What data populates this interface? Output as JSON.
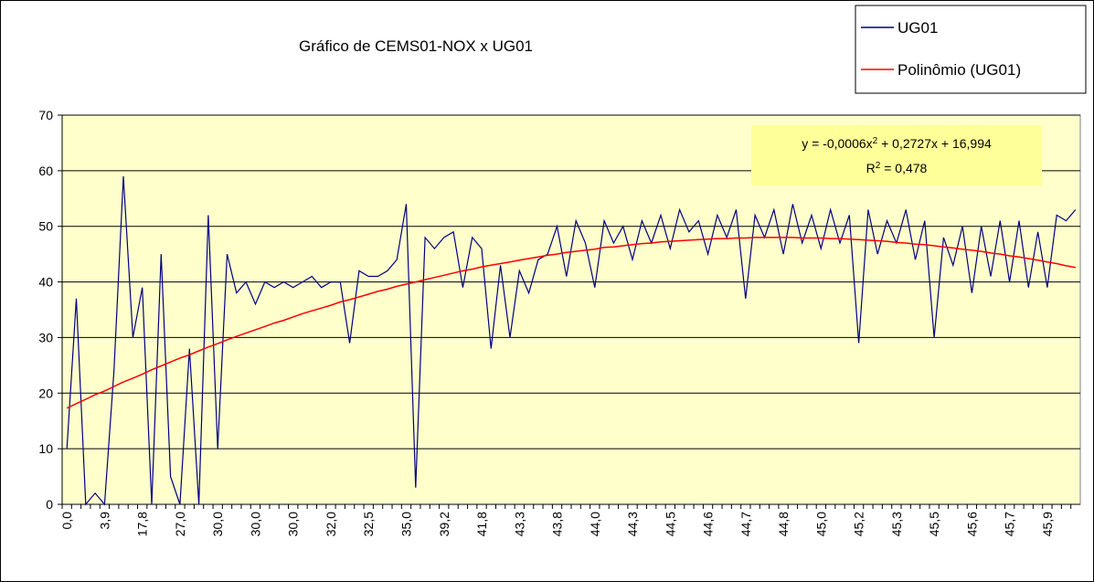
{
  "chart_data": {
    "type": "line",
    "title": "Gráfico de CEMS01-NOX x UG01",
    "categories": [
      "0,0",
      null,
      null,
      null,
      "3,9",
      null,
      null,
      null,
      "17,8",
      null,
      null,
      null,
      "27,0",
      null,
      null,
      null,
      "30,0",
      null,
      null,
      null,
      "30,0",
      null,
      null,
      null,
      "30,0",
      null,
      null,
      null,
      "32,0",
      null,
      null,
      null,
      "32,5",
      null,
      null,
      null,
      "35,0",
      null,
      null,
      null,
      "39,2",
      null,
      null,
      null,
      "41,8",
      null,
      null,
      null,
      "43,3",
      null,
      null,
      null,
      "43,8",
      null,
      null,
      null,
      "44,0",
      null,
      null,
      null,
      "44,3",
      null,
      null,
      null,
      "44,5",
      null,
      null,
      null,
      "44,6",
      null,
      null,
      null,
      "44,7",
      null,
      null,
      null,
      "44,8",
      null,
      null,
      null,
      "45,0",
      null,
      null,
      null,
      "45,2",
      null,
      null,
      null,
      "45,3",
      null,
      null,
      null,
      "45,5",
      null,
      null,
      null,
      "45,6",
      null,
      null,
      null,
      "45,7",
      null,
      null,
      null,
      "45,9",
      null,
      null,
      null
    ],
    "series": [
      {
        "name": "UG01",
        "color": "#000080",
        "values": [
          10,
          37,
          0,
          2,
          0,
          24,
          59,
          30,
          39,
          0,
          45,
          5,
          0,
          28,
          0,
          52,
          10,
          45,
          38,
          40,
          36,
          40,
          39,
          40,
          39,
          40,
          41,
          39,
          40,
          40,
          29,
          42,
          41,
          41,
          42,
          44,
          54,
          3,
          48,
          46,
          48,
          49,
          39,
          48,
          46,
          28,
          43,
          30,
          42,
          38,
          44,
          45,
          50,
          41,
          51,
          47,
          39,
          51,
          47,
          50,
          44,
          51,
          47,
          52,
          46,
          53,
          49,
          51,
          45,
          52,
          48,
          53,
          37,
          52,
          48,
          53,
          45,
          54,
          47,
          52,
          46,
          53,
          47,
          52,
          29,
          53,
          45,
          51,
          47,
          53,
          44,
          51,
          30,
          48,
          43,
          50,
          38,
          50,
          41,
          51,
          40,
          51,
          39,
          49,
          39,
          52,
          51,
          53
        ]
      },
      {
        "name": "Polinômio (UG01)",
        "color": "#ff0000",
        "values": [
          17.3,
          18.1,
          18.9,
          19.7,
          20.4,
          21.2,
          22.0,
          22.7,
          23.4,
          24.2,
          24.9,
          25.6,
          26.3,
          26.9,
          27.6,
          28.3,
          28.9,
          29.6,
          30.2,
          30.8,
          31.4,
          32.0,
          32.6,
          33.1,
          33.7,
          34.3,
          34.8,
          35.3,
          35.8,
          36.4,
          36.8,
          37.3,
          37.8,
          38.3,
          38.7,
          39.2,
          39.6,
          40.0,
          40.4,
          40.8,
          41.2,
          41.6,
          42.0,
          42.3,
          42.7,
          43.0,
          43.3,
          43.6,
          43.9,
          44.2,
          44.5,
          44.8,
          45.0,
          45.3,
          45.5,
          45.7,
          45.9,
          46.2,
          46.3,
          46.5,
          46.7,
          46.9,
          47.0,
          47.2,
          47.3,
          47.4,
          47.5,
          47.6,
          47.7,
          47.8,
          47.8,
          47.9,
          47.9,
          48.0,
          48.0,
          48.0,
          48.0,
          48.0,
          47.9,
          47.9,
          47.9,
          47.8,
          47.8,
          47.7,
          47.6,
          47.5,
          47.4,
          47.3,
          47.1,
          47.0,
          46.8,
          46.7,
          46.5,
          46.3,
          46.1,
          45.9,
          45.7,
          45.5,
          45.2,
          45.0,
          44.7,
          44.5,
          44.2,
          43.9,
          43.6,
          43.3,
          42.9,
          42.6
        ]
      }
    ],
    "ylim": [
      0,
      70
    ],
    "yticks": [
      0,
      10,
      20,
      30,
      40,
      50,
      60,
      70
    ],
    "grid": true,
    "legend": "top-right",
    "plot_color": "#ffffcc",
    "annotation": {
      "equation": [
        "y = -0,0006x",
        "2",
        " + 0,2727x + 16,994"
      ],
      "r2": [
        "R",
        "2",
        " = 0,478"
      ]
    }
  }
}
